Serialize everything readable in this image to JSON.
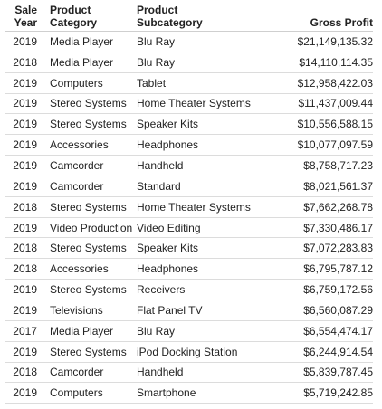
{
  "header": {
    "year": [
      "Sale",
      "Year"
    ],
    "category": [
      "Product",
      "Category"
    ],
    "subcategory": [
      "Product",
      "Subcategory"
    ],
    "gross_profit": "Gross Profit"
  },
  "rows": [
    {
      "year": "2019",
      "category": "Media Player",
      "subcategory": "Blu Ray",
      "gross_profit": "$21,149,135.32"
    },
    {
      "year": "2018",
      "category": "Media Player",
      "subcategory": "Blu Ray",
      "gross_profit": "$14,110,114.35"
    },
    {
      "year": "2019",
      "category": "Computers",
      "subcategory": "Tablet",
      "gross_profit": "$12,958,422.03"
    },
    {
      "year": "2019",
      "category": "Stereo Systems",
      "subcategory": "Home Theater Systems",
      "gross_profit": "$11,437,009.44"
    },
    {
      "year": "2019",
      "category": "Stereo Systems",
      "subcategory": "Speaker Kits",
      "gross_profit": "$10,556,588.15"
    },
    {
      "year": "2019",
      "category": "Accessories",
      "subcategory": "Headphones",
      "gross_profit": "$10,077,097.59"
    },
    {
      "year": "2019",
      "category": "Camcorder",
      "subcategory": "Handheld",
      "gross_profit": "$8,758,717.23"
    },
    {
      "year": "2019",
      "category": "Camcorder",
      "subcategory": "Standard",
      "gross_profit": "$8,021,561.37"
    },
    {
      "year": "2018",
      "category": "Stereo Systems",
      "subcategory": "Home Theater Systems",
      "gross_profit": "$7,662,268.78"
    },
    {
      "year": "2019",
      "category": "Video Production",
      "subcategory": "Video Editing",
      "gross_profit": "$7,330,486.17"
    },
    {
      "year": "2018",
      "category": "Stereo Systems",
      "subcategory": "Speaker Kits",
      "gross_profit": "$7,072,283.83"
    },
    {
      "year": "2018",
      "category": "Accessories",
      "subcategory": "Headphones",
      "gross_profit": "$6,795,787.12"
    },
    {
      "year": "2019",
      "category": "Stereo Systems",
      "subcategory": "Receivers",
      "gross_profit": "$6,759,172.56"
    },
    {
      "year": "2019",
      "category": "Televisions",
      "subcategory": "Flat Panel TV",
      "gross_profit": "$6,560,087.29"
    },
    {
      "year": "2017",
      "category": "Media Player",
      "subcategory": "Blu Ray",
      "gross_profit": "$6,554,474.17"
    },
    {
      "year": "2019",
      "category": "Stereo Systems",
      "subcategory": "iPod Docking Station",
      "gross_profit": "$6,244,914.54"
    },
    {
      "year": "2018",
      "category": "Camcorder",
      "subcategory": "Handheld",
      "gross_profit": "$5,839,787.45"
    },
    {
      "year": "2019",
      "category": "Computers",
      "subcategory": "Smartphone",
      "gross_profit": "$5,719,242.85"
    }
  ]
}
